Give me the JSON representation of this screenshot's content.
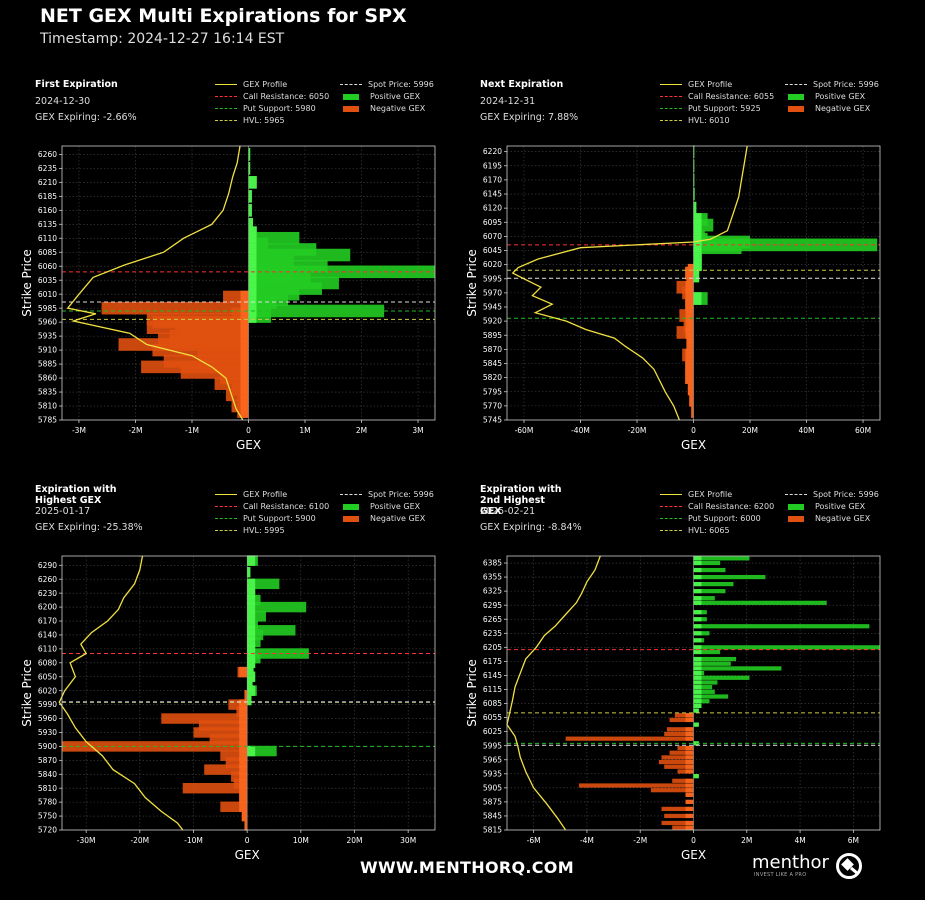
{
  "header": {
    "title": "NET GEX Multi Expirations for SPX",
    "timestamp": "Timestamp: 2024-12-27 16:14 EST"
  },
  "footer": {
    "url": "WWW.MENTHORQ.COM",
    "brand": "menthor",
    "tagline": "INVEST LIKE A PRO"
  },
  "colors": {
    "background": "#000000",
    "positive_gex": "#22cc22",
    "negative_gex": "#e05010",
    "gex_profile": "#f0e040",
    "call_resistance": "#ff3030",
    "put_support": "#22bb22",
    "hvl": "#cccc44",
    "spot_price": "#dddddd"
  },
  "legend_labels": {
    "gex_profile": "GEX Profile",
    "spot_price": "Spot Price",
    "call_resistance": "Call Resistance",
    "positive_gex": "Positive GEX",
    "put_support": "Put Support",
    "negative_gex": "Negative GEX",
    "hvl": "HVL"
  },
  "chart_data": [
    {
      "type": "bar",
      "panel_title": "First Expiration",
      "date": "2024-12-30",
      "gex_expiring": "GEX Expiring: -2.66%",
      "legend": {
        "call_resistance": "Call Resistance: 6050",
        "put_support": "Put Support: 5980",
        "hvl": "HVL: 5965",
        "spot_price": "Spot Price: 5996"
      },
      "levels": {
        "call_resistance": 6050,
        "put_support": 5980,
        "hvl": 5965,
        "spot_price": 5996
      },
      "xlabel": "GEX",
      "ylabel": "Strike Price",
      "xlim": [
        -3300000,
        3300000
      ],
      "ylim": [
        5785,
        6275
      ],
      "xticks": [
        -3000000,
        -2000000,
        -1000000,
        0,
        1000000,
        2000000,
        3000000
      ],
      "xtick_labels": [
        "-3M",
        "-2M",
        "-1M",
        "0",
        "1M",
        "2M",
        "3M"
      ],
      "yticks": [
        5785,
        5810,
        5835,
        5860,
        5885,
        5910,
        5935,
        5960,
        5985,
        6010,
        6035,
        6060,
        6085,
        6110,
        6135,
        6160,
        6185,
        6210,
        6235,
        6260
      ],
      "strikes": [
        6260,
        6235,
        6210,
        6185,
        6160,
        6135,
        6120,
        6110,
        6100,
        6090,
        6080,
        6070,
        6060,
        6050,
        6045,
        6040,
        6030,
        6020,
        6010,
        6005,
        6000,
        5995,
        5990,
        5985,
        5980,
        5975,
        5970,
        5965,
        5960,
        5955,
        5950,
        5945,
        5940,
        5935,
        5930,
        5925,
        5920,
        5910,
        5900,
        5890,
        5880,
        5870,
        5860,
        5850,
        5840,
        5830,
        5820,
        5810,
        5800
      ],
      "values": [
        30000,
        30000,
        150000,
        60000,
        60000,
        80000,
        150000,
        900000,
        350000,
        1200000,
        1800000,
        800000,
        1400000,
        3300000,
        800000,
        1100000,
        1600000,
        1300000,
        900000,
        -450000,
        700000,
        500000,
        400000,
        -2600000,
        2400000,
        -300000,
        400000,
        -1800000,
        -1700000,
        -1300000,
        -1800000,
        -1200000,
        -1000000,
        -1400000,
        -1600000,
        -1400000,
        -2300000,
        -1700000,
        -900000,
        -1500000,
        -1900000,
        -1200000,
        -500000,
        -600000,
        -300000,
        -400000,
        -200000,
        -300000,
        -200000
      ],
      "gex_profile": [
        [
          -150000,
          6275
        ],
        [
          -200000,
          6245
        ],
        [
          -280000,
          6220
        ],
        [
          -350000,
          6190
        ],
        [
          -450000,
          6160
        ],
        [
          -650000,
          6135
        ],
        [
          -1150000,
          6110
        ],
        [
          -1500000,
          6085
        ],
        [
          -2200000,
          6062
        ],
        [
          -2750000,
          6040
        ],
        [
          -3000000,
          6010
        ],
        [
          -3200000,
          5985
        ],
        [
          -2700000,
          5975
        ],
        [
          -3100000,
          5962
        ],
        [
          -2100000,
          5940
        ],
        [
          -1800000,
          5920
        ],
        [
          -1000000,
          5900
        ],
        [
          -650000,
          5880
        ],
        [
          -400000,
          5860
        ],
        [
          -300000,
          5830
        ],
        [
          -220000,
          5805
        ],
        [
          -100000,
          5785
        ]
      ]
    },
    {
      "type": "bar",
      "panel_title": "Next Expiration",
      "date": "2024-12-31",
      "gex_expiring": "GEX Expiring: 7.88%",
      "legend": {
        "call_resistance": "Call Resistance: 6055",
        "put_support": "Put Support: 5925",
        "hvl": "HVL: 6010",
        "spot_price": "Spot Price: 5996"
      },
      "levels": {
        "call_resistance": 6055,
        "put_support": 5925,
        "hvl": 6010,
        "spot_price": 5996
      },
      "xlabel": "GEX",
      "ylabel": "Strike Price",
      "xlim": [
        -66000000,
        66000000
      ],
      "ylim": [
        5745,
        6230
      ],
      "xticks": [
        -60000000,
        -40000000,
        -20000000,
        0,
        20000000,
        40000000,
        60000000
      ],
      "xtick_labels": [
        "-60M",
        "-40M",
        "-20M",
        "0",
        "20M",
        "40M",
        "60M"
      ],
      "yticks": [
        5745,
        5770,
        5795,
        5820,
        5845,
        5870,
        5895,
        5920,
        5945,
        5970,
        5995,
        6020,
        6045,
        6070,
        6095,
        6120,
        6145,
        6170,
        6195,
        6220
      ],
      "strikes": [
        6220,
        6195,
        6170,
        6145,
        6120,
        6100,
        6090,
        6080,
        6070,
        6065,
        6060,
        6055,
        6050,
        6040,
        6030,
        6020,
        6015,
        6010,
        6005,
        6000,
        5990,
        5980,
        5970,
        5960,
        5950,
        5940,
        5930,
        5920,
        5910,
        5900,
        5890,
        5880,
        5860,
        5840,
        5820,
        5800,
        5780,
        5760
      ],
      "values": [
        200000,
        200000,
        300000,
        400000,
        1000000,
        5000000,
        7000000,
        3000000,
        4000000,
        5000000,
        20000000,
        65000000,
        17000000,
        3000000,
        2000000,
        3000000,
        2000000,
        -2000000,
        -3000000,
        2000000,
        -2500000,
        -6000000,
        -4000000,
        5000000,
        -3000000,
        -1500000,
        -5000000,
        -2000000,
        -3500000,
        -6000000,
        -2000000,
        -2500000,
        -4000000,
        -3000000,
        -3000000,
        -2000000,
        -1500000,
        -800000
      ],
      "gex_profile": [
        [
          19000000,
          6230
        ],
        [
          18000000,
          6200
        ],
        [
          17000000,
          6170
        ],
        [
          16000000,
          6140
        ],
        [
          14000000,
          6110
        ],
        [
          12000000,
          6080
        ],
        [
          6000000,
          6065
        ],
        [
          0,
          6060
        ],
        [
          -40000000,
          6050
        ],
        [
          -55000000,
          6030
        ],
        [
          -62000000,
          6015
        ],
        [
          -64000000,
          6005
        ],
        [
          -60000000,
          5995
        ],
        [
          -54000000,
          5980
        ],
        [
          -57000000,
          5965
        ],
        [
          -50000000,
          5950
        ],
        [
          -56000000,
          5935
        ],
        [
          -45000000,
          5920
        ],
        [
          -38000000,
          5905
        ],
        [
          -28000000,
          5890
        ],
        [
          -24000000,
          5875
        ],
        [
          -18000000,
          5855
        ],
        [
          -14000000,
          5835
        ],
        [
          -12000000,
          5815
        ],
        [
          -10000000,
          5795
        ],
        [
          -7000000,
          5770
        ],
        [
          -5000000,
          5745
        ]
      ]
    },
    {
      "type": "bar",
      "panel_title": "Expiration with Highest GEX",
      "date": "2025-01-17",
      "gex_expiring": "GEX Expiring: -25.38%",
      "legend": {
        "call_resistance": "Call Resistance: 6100",
        "put_support": "Put Support: 5900",
        "hvl": "HVL: 5995",
        "spot_price": "Spot Price: 5996"
      },
      "levels": {
        "call_resistance": 6100,
        "put_support": 5900,
        "hvl": 5995,
        "spot_price": 5996
      },
      "xlabel": "GEX",
      "ylabel": "Strike Price",
      "xlim": [
        -34500000,
        35000000
      ],
      "ylim": [
        5720,
        6310
      ],
      "xticks": [
        -30000000,
        -20000000,
        -10000000,
        0,
        10000000,
        20000000,
        30000000
      ],
      "xtick_labels": [
        "-30M",
        "-20M",
        "-10M",
        "0",
        "10M",
        "20M",
        "30M"
      ],
      "yticks": [
        5720,
        5750,
        5780,
        5810,
        5840,
        5870,
        5900,
        5930,
        5960,
        5990,
        6020,
        6050,
        6080,
        6110,
        6140,
        6170,
        6200,
        6230,
        6260,
        6290
      ],
      "strikes": [
        6300,
        6275,
        6250,
        6230,
        6215,
        6200,
        6180,
        6160,
        6150,
        6140,
        6125,
        6110,
        6100,
        6090,
        6080,
        6070,
        6060,
        6050,
        6040,
        6030,
        6020,
        6010,
        6000,
        5990,
        5975,
        5960,
        5945,
        5930,
        5915,
        5900,
        5890,
        5880,
        5865,
        5850,
        5835,
        5820,
        5810,
        5790,
        5770,
        5750,
        5730
      ],
      "values": [
        2000000,
        600000,
        6000000,
        1500000,
        2500000,
        11000000,
        3500000,
        2000000,
        9000000,
        3000000,
        2500000,
        1500000,
        11500000,
        2500000,
        1500000,
        1200000,
        -1800000,
        1500000,
        1000000,
        1000000,
        1800000,
        -500000,
        800000,
        -3500000,
        -2000000,
        -16000000,
        -9000000,
        -10000000,
        -7000000,
        -34500000,
        5500000,
        -5000000,
        -4000000,
        -8000000,
        -3000000,
        -2500000,
        -12000000,
        -1500000,
        -5000000,
        -1000000,
        -500000
      ],
      "gex_profile": [
        [
          -19500000,
          6310
        ],
        [
          -20000000,
          6280
        ],
        [
          -21000000,
          6250
        ],
        [
          -23000000,
          6220
        ],
        [
          -24000000,
          6195
        ],
        [
          -26000000,
          6170
        ],
        [
          -29000000,
          6145
        ],
        [
          -31000000,
          6120
        ],
        [
          -30000000,
          6100
        ],
        [
          -33000000,
          6080
        ],
        [
          -32000000,
          6050
        ],
        [
          -34000000,
          6020
        ],
        [
          -35000000,
          5995
        ],
        [
          -33500000,
          5970
        ],
        [
          -32000000,
          5940
        ],
        [
          -30000000,
          5910
        ],
        [
          -27000000,
          5880
        ],
        [
          -25000000,
          5850
        ],
        [
          -21000000,
          5820
        ],
        [
          -19000000,
          5790
        ],
        [
          -16000000,
          5760
        ],
        [
          -13000000,
          5735
        ],
        [
          -12000000,
          5720
        ]
      ]
    },
    {
      "type": "bar",
      "panel_title": "Expiration with 2nd Highest GEX",
      "date": "2025-02-21",
      "gex_expiring": "GEX Expiring: -8.84%",
      "legend": {
        "call_resistance": "Call Resistance: 6200",
        "put_support": "Put Support: 6000",
        "hvl": "HVL: 6065",
        "spot_price": "Spot Price: 5996"
      },
      "levels": {
        "call_resistance": 6200,
        "put_support": 6000,
        "hvl": 6065,
        "spot_price": 5996
      },
      "xlabel": "GEX",
      "ylabel": "Strike Price",
      "xlim": [
        -7000000,
        7000000
      ],
      "ylim": [
        5815,
        6400
      ],
      "xticks": [
        -6000000,
        -4000000,
        -2000000,
        0,
        2000000,
        4000000,
        6000000
      ],
      "xtick_labels": [
        "-6M",
        "-4M",
        "-2M",
        "0",
        "2M",
        "4M",
        "6M"
      ],
      "yticks": [
        5815,
        5845,
        5875,
        5905,
        5935,
        5965,
        5995,
        6025,
        6055,
        6085,
        6115,
        6145,
        6175,
        6205,
        6235,
        6265,
        6295,
        6325,
        6355,
        6385
      ],
      "strikes": [
        6395,
        6385,
        6370,
        6355,
        6340,
        6325,
        6310,
        6300,
        6280,
        6265,
        6250,
        6235,
        6220,
        6205,
        6195,
        6180,
        6170,
        6160,
        6150,
        6140,
        6130,
        6120,
        6110,
        6100,
        6090,
        6080,
        6070,
        6060,
        6050,
        6040,
        6030,
        6020,
        6010,
        6000,
        5990,
        5980,
        5970,
        5960,
        5950,
        5940,
        5930,
        5920,
        5910,
        5900,
        5890,
        5875,
        5860,
        5845,
        5830,
        5820
      ],
      "values": [
        2100000,
        1000000,
        1200000,
        2700000,
        1500000,
        1200000,
        800000,
        5000000,
        500000,
        500000,
        6600000,
        600000,
        400000,
        7000000,
        1000000,
        1600000,
        1400000,
        3300000,
        400000,
        2100000,
        900000,
        700000,
        800000,
        1300000,
        600000,
        300000,
        200000,
        -700000,
        -900000,
        200000,
        -1000000,
        -1100000,
        -4800000,
        200000,
        -600000,
        -900000,
        -1200000,
        -1300000,
        -1100000,
        -600000,
        200000,
        -800000,
        -4300000,
        -1600000,
        -300000,
        -300000,
        -1200000,
        -1100000,
        -1200000,
        -800000
      ],
      "gex_profile": [
        [
          -3500000,
          6400
        ],
        [
          -3700000,
          6370
        ],
        [
          -4000000,
          6345
        ],
        [
          -4200000,
          6320
        ],
        [
          -4400000,
          6300
        ],
        [
          -4800000,
          6275
        ],
        [
          -5200000,
          6250
        ],
        [
          -5600000,
          6230
        ],
        [
          -5900000,
          6205
        ],
        [
          -6300000,
          6180
        ],
        [
          -6500000,
          6150
        ],
        [
          -6700000,
          6120
        ],
        [
          -6800000,
          6090
        ],
        [
          -6900000,
          6065
        ],
        [
          -7000000,
          6040
        ],
        [
          -6700000,
          6015
        ],
        [
          -6600000,
          5995
        ],
        [
          -6500000,
          5970
        ],
        [
          -6300000,
          5940
        ],
        [
          -6000000,
          5905
        ],
        [
          -5500000,
          5870
        ],
        [
          -5100000,
          5840
        ],
        [
          -4800000,
          5815
        ]
      ]
    }
  ]
}
